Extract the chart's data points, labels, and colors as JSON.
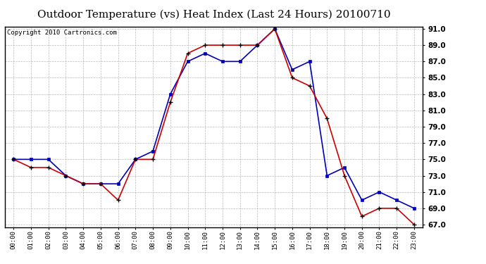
{
  "title": "Outdoor Temperature (vs) Heat Index (Last 24 Hours) 20100710",
  "copyright": "Copyright 2010 Cartronics.com",
  "x_labels": [
    "00:00",
    "01:00",
    "02:00",
    "03:00",
    "04:00",
    "05:00",
    "06:00",
    "07:00",
    "08:00",
    "09:00",
    "10:00",
    "11:00",
    "12:00",
    "13:00",
    "14:00",
    "15:00",
    "16:00",
    "17:00",
    "18:00",
    "19:00",
    "20:00",
    "21:00",
    "22:00",
    "23:00"
  ],
  "temp_blue": [
    75,
    75,
    75,
    73,
    72,
    72,
    72,
    75,
    76,
    83,
    87,
    88,
    87,
    87,
    89,
    91,
    86,
    87,
    73,
    74,
    70,
    71,
    70,
    69
  ],
  "heat_red": [
    75,
    74,
    74,
    73,
    72,
    72,
    70,
    75,
    75,
    82,
    88,
    89,
    89,
    89,
    89,
    91,
    85,
    84,
    80,
    73,
    68,
    69,
    69,
    67
  ],
  "ylim_min": 67.0,
  "ylim_max": 91.0,
  "yticks": [
    67.0,
    69.0,
    71.0,
    73.0,
    75.0,
    77.0,
    79.0,
    81.0,
    83.0,
    85.0,
    87.0,
    89.0,
    91.0
  ],
  "blue_color": "#0000bb",
  "red_color": "#cc0000",
  "bg_color": "#ffffff",
  "grid_color": "#aaaaaa",
  "title_fontsize": 11,
  "copyright_fontsize": 6.5
}
